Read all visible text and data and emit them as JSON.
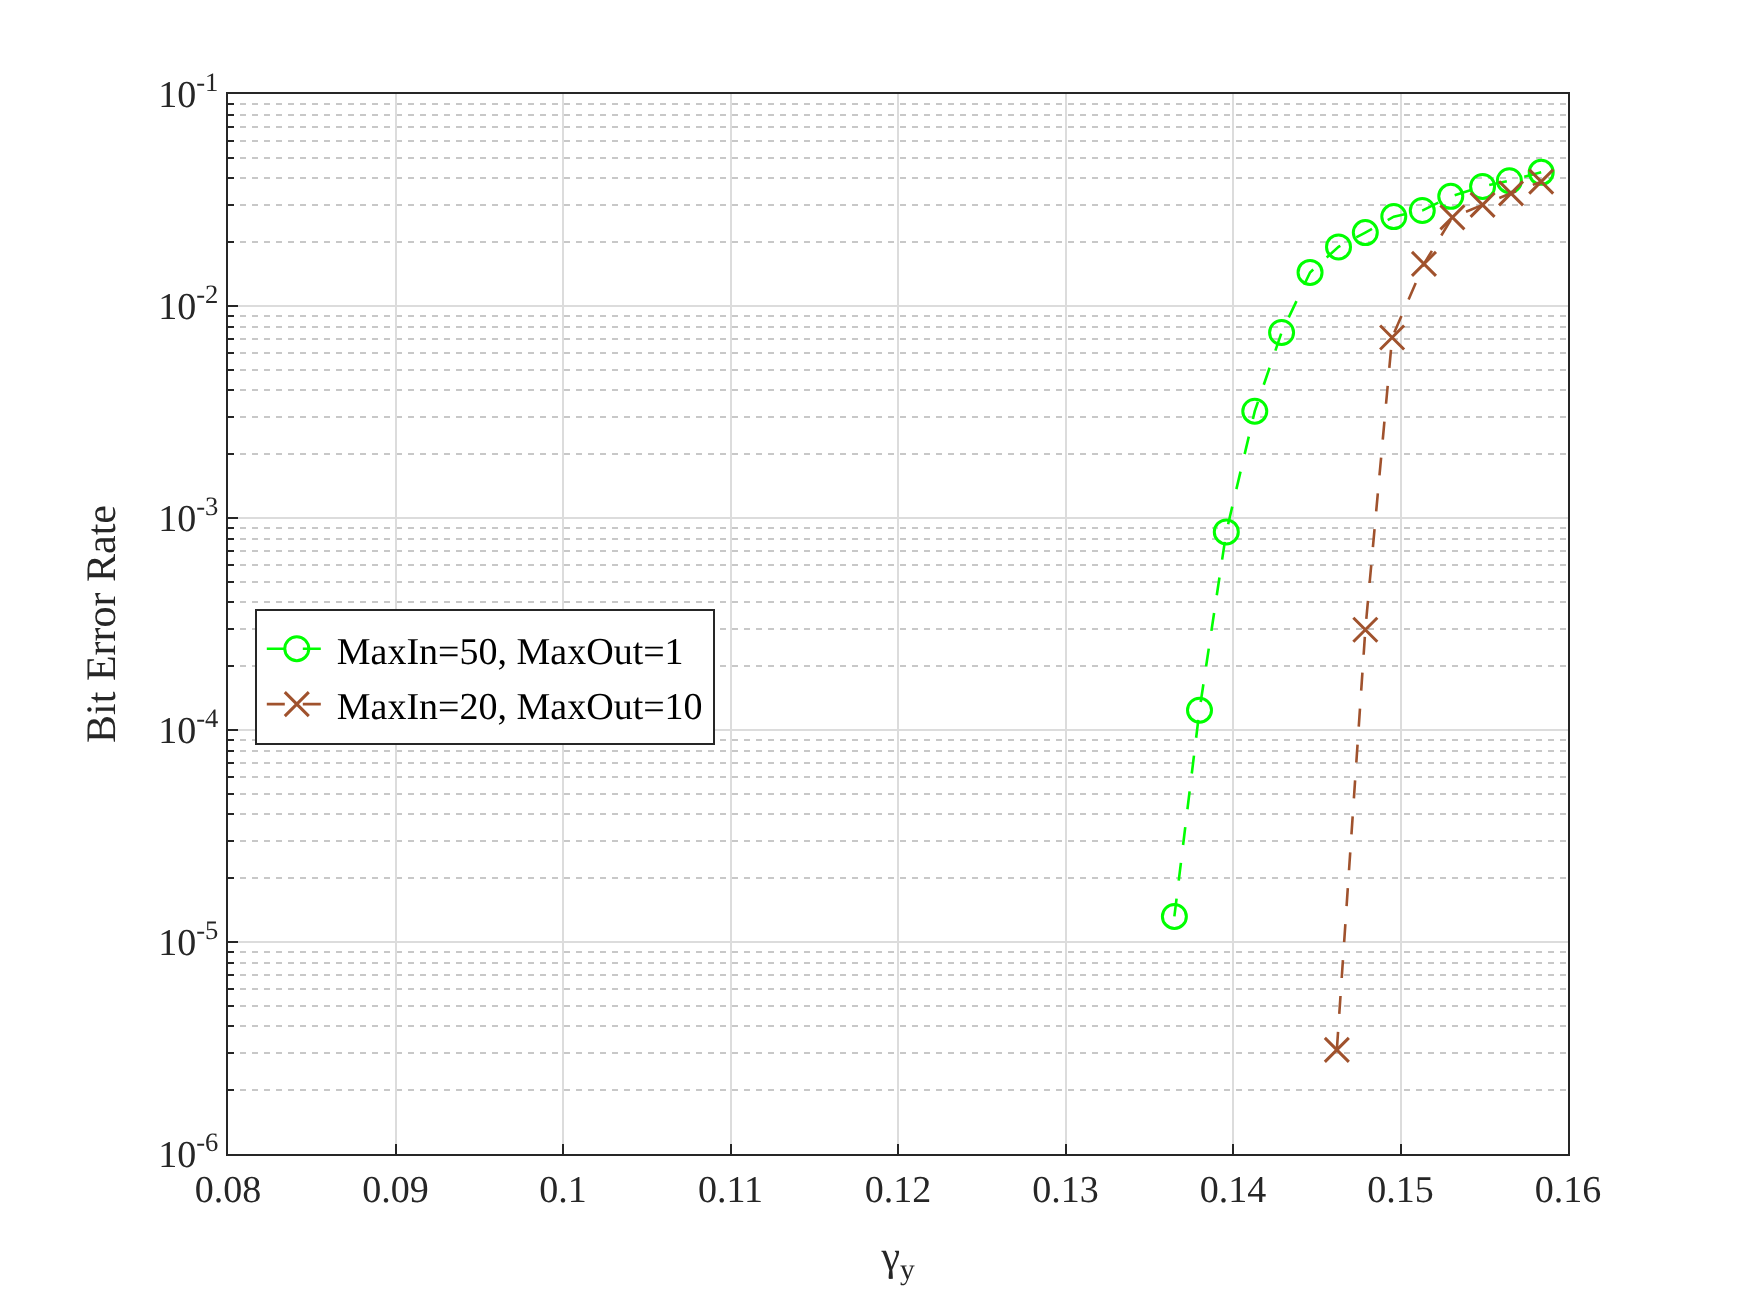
{
  "chart_data": {
    "type": "line",
    "xlabel": "γ$_{y}$",
    "ylabel": "Bit Error Rate",
    "log": "y",
    "grid": true,
    "legend": "left",
    "line_style": "dashed",
    "xlim": [
      0.08,
      0.16
    ],
    "xticks": [
      0.08,
      0.09,
      0.1,
      0.11,
      0.12,
      0.13,
      0.14,
      0.15,
      0.16
    ],
    "ylim": [
      1e-06,
      0.1
    ],
    "yticks": [
      {
        "value": 1e-06,
        "label": "10$^{-6}$"
      },
      {
        "value": 1e-05,
        "label": "10$^{-5}$"
      },
      {
        "value": 0.0001,
        "label": "10$^{-4}$"
      },
      {
        "value": 0.001,
        "label": "10$^{-3}$"
      },
      {
        "value": 0.01,
        "label": "10$^{-2}$"
      },
      {
        "value": 0.1,
        "label": "10$^{-1}$"
      }
    ],
    "series": [
      {
        "name": "MaxIn=50, MaxOut=1",
        "color": "#00ff00",
        "marker": "circle",
        "x": [
          0.1365,
          0.138,
          0.1396,
          0.1413,
          0.1429,
          0.1446,
          0.1463,
          0.1479,
          0.1496,
          0.1513,
          0.153,
          0.1549,
          0.1565,
          0.1584
        ],
        "values": [
          1.32e-05,
          0.000124,
          0.00086,
          0.00319,
          0.0075,
          0.0144,
          0.019,
          0.0222,
          0.0264,
          0.0282,
          0.0329,
          0.0366,
          0.039,
          0.0427
        ]
      },
      {
        "name": "MaxIn=20, MaxOut=10",
        "color": "#a0522d",
        "marker": "cross",
        "x": [
          0.1462,
          0.1479,
          0.1495,
          0.1514,
          0.1531,
          0.1549,
          0.1566,
          0.1584
        ],
        "values": [
          3.1e-06,
          0.000297,
          0.0071,
          0.0158,
          0.0262,
          0.03,
          0.034,
          0.0386
        ]
      }
    ]
  }
}
